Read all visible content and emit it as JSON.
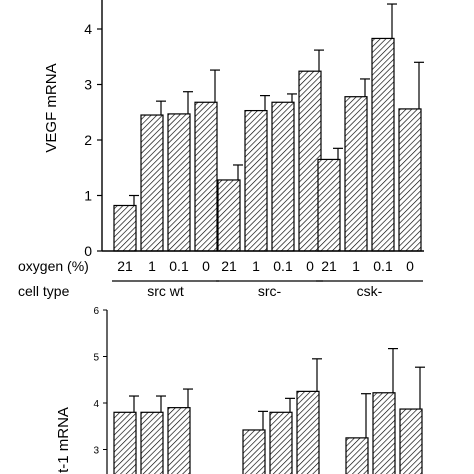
{
  "chart_data": [
    {
      "type": "bar",
      "ylabel": "VEGF mRNA",
      "ylim": [
        0,
        4.5
      ],
      "yticks": [
        0,
        1,
        2,
        3,
        4
      ],
      "row_labels": {
        "oxygen": "oxygen (%)",
        "cell_type": "cell type"
      },
      "groups": [
        {
          "name": "src wt",
          "oxygen": [
            "21",
            "1",
            "0.1",
            "0"
          ],
          "values": [
            0.82,
            2.45,
            2.47,
            2.68
          ],
          "errors": [
            0.18,
            0.25,
            0.4,
            0.58
          ]
        },
        {
          "name": "src-",
          "oxygen": [
            "21",
            "1",
            "0.1",
            "0"
          ],
          "values": [
            1.28,
            2.53,
            2.68,
            3.24
          ],
          "errors": [
            0.27,
            0.27,
            0.15,
            0.38
          ]
        },
        {
          "name": "csk-",
          "oxygen": [
            "21",
            "1",
            "0.1",
            "0"
          ],
          "values": [
            1.65,
            2.78,
            3.83,
            2.56
          ],
          "errors": [
            0.2,
            0.32,
            0.62,
            0.84
          ]
        }
      ],
      "bar_fill": "hatched",
      "grid": false
    },
    {
      "type": "bar",
      "ylabel": "t-1 mRNA",
      "ylim": [
        2.5,
        6
      ],
      "yticks": [
        3,
        4,
        5,
        6
      ],
      "groups": [
        {
          "name": "src wt",
          "values": [
            3.8,
            3.8,
            3.9
          ],
          "errors": [
            0.35,
            0.35,
            0.4
          ]
        },
        {
          "name": "src-",
          "values": [
            3.42,
            3.8,
            4.25
          ],
          "errors": [
            0.4,
            0.3,
            0.7
          ]
        },
        {
          "name": "csk-",
          "values": [
            3.25,
            4.22,
            3.87
          ],
          "errors": [
            0.95,
            0.95,
            0.9
          ]
        }
      ],
      "bar_fill": "hatched",
      "grid": false
    }
  ]
}
